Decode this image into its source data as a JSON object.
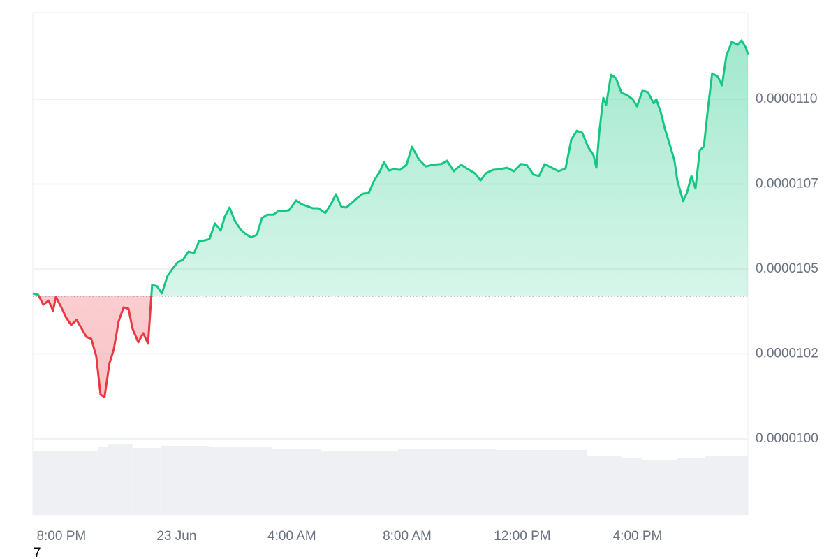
{
  "chart_data": {
    "type": "line",
    "x": [
      -0.99,
      -0.8,
      -0.63,
      -0.44,
      -0.29,
      -0.19,
      0,
      0.17,
      0.34,
      0.53,
      0.7,
      0.87,
      1.04,
      1.21,
      1.36,
      1.5,
      1.67,
      1.82,
      1.99,
      2.16,
      2.33,
      2.47,
      2.67,
      2.84,
      3.01,
      3.15,
      3.32,
      3.49,
      3.68,
      3.85,
      4.05,
      4.22,
      4.41,
      4.61,
      4.78,
      4.97,
      5.14,
      5.33,
      5.53,
      5.67,
      5.84,
      6.01,
      6.21,
      6.4,
      6.59,
      6.79,
      6.96,
      7.15,
      7.35,
      7.54,
      7.73,
      7.9,
      8.15,
      8.34,
      8.53,
      8.73,
      8.92,
      9.16,
      9.36,
      9.53,
      9.72,
      9.89,
      10.08,
      10.28,
      10.47,
      10.67,
      10.86,
      11.05,
      11.2,
      11.37,
      11.54,
      11.76,
      11.98,
      12.17,
      12.41,
      12.65,
      12.9,
      13.19,
      13.38,
      13.62,
      13.87,
      14.11,
      14.35,
      14.55,
      14.74,
      14.98,
      15.22,
      15.47,
      15.71,
      15.95,
      16.15,
      16.39,
      16.58,
      16.78,
      17.02,
      17.26,
      17.5,
      17.7,
      17.89,
      18.08,
      18.28,
      18.47,
      18.57,
      18.67,
      18.81,
      18.91,
      19.08,
      19.25,
      19.44,
      19.64,
      19.83,
      19.98,
      20.17,
      20.36,
      20.56,
      20.65,
      20.8,
      20.95,
      21.14,
      21.28,
      21.38,
      21.58,
      21.72,
      21.87,
      22.01,
      22.16,
      22.3,
      22.45,
      22.59,
      22.79,
      22.93,
      23.08,
      23.27,
      23.47,
      23.61,
      23.76,
      23.83
    ],
    "values": [
      1.0428e-05,
      1.0424e-05,
      1.0395e-05,
      1.0407e-05,
      1.0377e-05,
      1.0418e-05,
      1.0387e-05,
      1.0356e-05,
      1.0335e-05,
      1.035e-05,
      1.0325e-05,
      1.03e-05,
      1.0294e-05,
      1.0243e-05,
      1.013e-05,
      1.0123e-05,
      1.0222e-05,
      1.0263e-05,
      1.0346e-05,
      1.0387e-05,
      1.0383e-05,
      1.0325e-05,
      1.0284e-05,
      1.0311e-05,
      1.028e-05,
      1.0453e-05,
      1.0449e-05,
      1.0428e-05,
      1.0479e-05,
      1.05e-05,
      1.0521e-05,
      1.0527e-05,
      1.0551e-05,
      1.0547e-05,
      1.0582e-05,
      1.0584e-05,
      1.0588e-05,
      1.0634e-05,
      1.0613e-05,
      1.0654e-05,
      1.0681e-05,
      1.0644e-05,
      1.0617e-05,
      1.0603e-05,
      1.0593e-05,
      1.0601e-05,
      1.065e-05,
      1.066e-05,
      1.066e-05,
      1.0671e-05,
      1.0671e-05,
      1.0673e-05,
      1.0702e-05,
      1.0691e-05,
      1.0685e-05,
      1.0679e-05,
      1.0679e-05,
      1.0665e-05,
      1.0691e-05,
      1.072e-05,
      1.0683e-05,
      1.0681e-05,
      1.0695e-05,
      1.071e-05,
      1.0722e-05,
      1.0724e-05,
      1.0761e-05,
      1.0786e-05,
      1.0815e-05,
      1.079e-05,
      1.0794e-05,
      1.0792e-05,
      1.0807e-05,
      1.086e-05,
      1.0823e-05,
      1.0802e-05,
      1.0807e-05,
      1.0809e-05,
      1.0819e-05,
      1.0788e-05,
      1.0807e-05,
      1.0794e-05,
      1.0782e-05,
      1.0761e-05,
      1.0782e-05,
      1.0792e-05,
      1.0794e-05,
      1.0798e-05,
      1.0788e-05,
      1.0809e-05,
      1.0807e-05,
      1.0778e-05,
      1.0774e-05,
      1.0809e-05,
      1.0798e-05,
      1.0788e-05,
      1.0796e-05,
      1.0881e-05,
      1.0907e-05,
      1.0901e-05,
      1.086e-05,
      1.0835e-05,
      1.0798e-05,
      1.0901e-05,
      1.1004e-05,
      1.0984e-05,
      1.1072e-05,
      1.1062e-05,
      1.1019e-05,
      1.1012e-05,
      1.1e-05,
      1.0979e-05,
      1.1025e-05,
      1.1021e-05,
      1.0988e-05,
      1.1e-05,
      1.0963e-05,
      1.0912e-05,
      1.086e-05,
      1.0819e-05,
      1.0761e-05,
      1.07e-05,
      1.0726e-05,
      1.0774e-05,
      1.0737e-05,
      1.085e-05,
      1.086e-05,
      1.0979e-05,
      1.1076e-05,
      1.1066e-05,
      1.1041e-05,
      1.1128e-05,
      1.1169e-05,
      1.116e-05,
      1.1173e-05,
      1.1152e-05,
      1.1132e-05
    ],
    "baseline": 1.042e-05,
    "up_color": "#16c784",
    "down_color": "#ea3943",
    "xlim": [
      -0.99,
      23.83
    ],
    "xticks": [
      {
        "value": 0,
        "label": "8:00 PM"
      },
      {
        "value": 4,
        "label": "23 Jun"
      },
      {
        "value": 8,
        "label": "4:00 AM"
      },
      {
        "value": 12,
        "label": "8:00 AM"
      },
      {
        "value": 16,
        "label": "12:00 PM"
      },
      {
        "value": 20,
        "label": "4:00 PM"
      }
    ],
    "ylim": [
      9.7756e-06,
      1.12551e-05
    ],
    "yticks": [
      {
        "value": 1.1e-05,
        "label": "0.0000110"
      },
      {
        "value": 1.075e-05,
        "label": "0.0000107"
      },
      {
        "value": 1.05e-05,
        "label": "0.0000105"
      },
      {
        "value": 1.025e-05,
        "label": "0.0000102"
      },
      {
        "value": 1e-05,
        "label": "0.0000100"
      }
    ],
    "grid": true,
    "volume": {
      "color": "#eef0f3",
      "x": [
        -0.99,
        1.26,
        1.62,
        2.47,
        3.44,
        5.14,
        7.32,
        9.02,
        11.68,
        15.08,
        18.23,
        19.44,
        20.17,
        21.38,
        22.35
      ],
      "values": [
        92,
        98,
        101,
        96,
        99,
        97,
        94,
        92,
        95,
        93,
        84,
        82,
        78,
        81,
        85
      ]
    },
    "footnote": "7"
  }
}
